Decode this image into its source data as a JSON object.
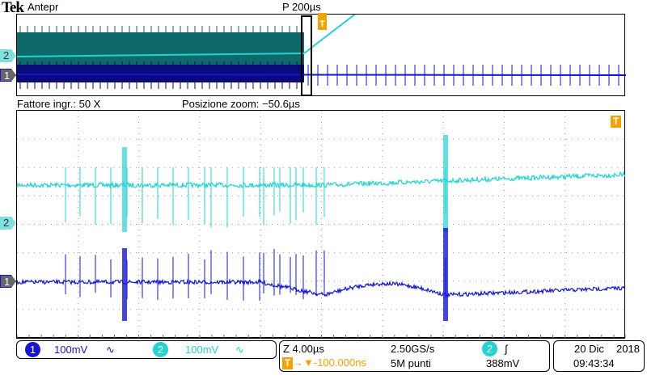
{
  "header": {
    "brand": "Tek",
    "mode": "Antepr",
    "horizontal_position": "P 200µs"
  },
  "zoom": {
    "factor_label": "Fattore ingr.: 50 X",
    "position_label": "Posizione zoom: −50.6µs"
  },
  "channels": [
    {
      "number": "1",
      "scale": "100mV",
      "coupling_icon": "∿",
      "color": "#1515d6"
    },
    {
      "number": "2",
      "scale": "100mV",
      "coupling_icon": "∿",
      "color": "#22d3d3"
    }
  ],
  "timebase": {
    "zoom_scale": "Z 4.00µs",
    "sample_rate": "2.50GS/s",
    "trigger_delay": "-100.000ns",
    "record_length": "5M punti"
  },
  "trigger": {
    "source": "2",
    "slope_icon": "∫",
    "level": "388mV",
    "marker": "T",
    "color": "#f5a100"
  },
  "datetime": {
    "date": "20 Dic",
    "year": "2018",
    "time": "09:43:34"
  }
}
